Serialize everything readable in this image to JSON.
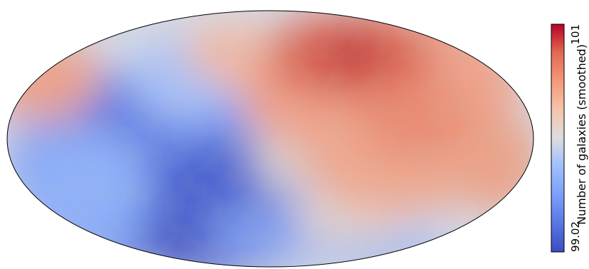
{
  "colorbar": {
    "label": "Number of galaxies (smoothed)",
    "min_label": "99.02",
    "max_label": "101",
    "min": 99.02,
    "max": 101,
    "colormap": "coolwarm"
  },
  "map": {
    "projection": "mollweide",
    "outline_color": "#000000",
    "colors": {
      "low": "#3b4cc0",
      "mid": "#dddddd",
      "high": "#b40426"
    }
  }
}
